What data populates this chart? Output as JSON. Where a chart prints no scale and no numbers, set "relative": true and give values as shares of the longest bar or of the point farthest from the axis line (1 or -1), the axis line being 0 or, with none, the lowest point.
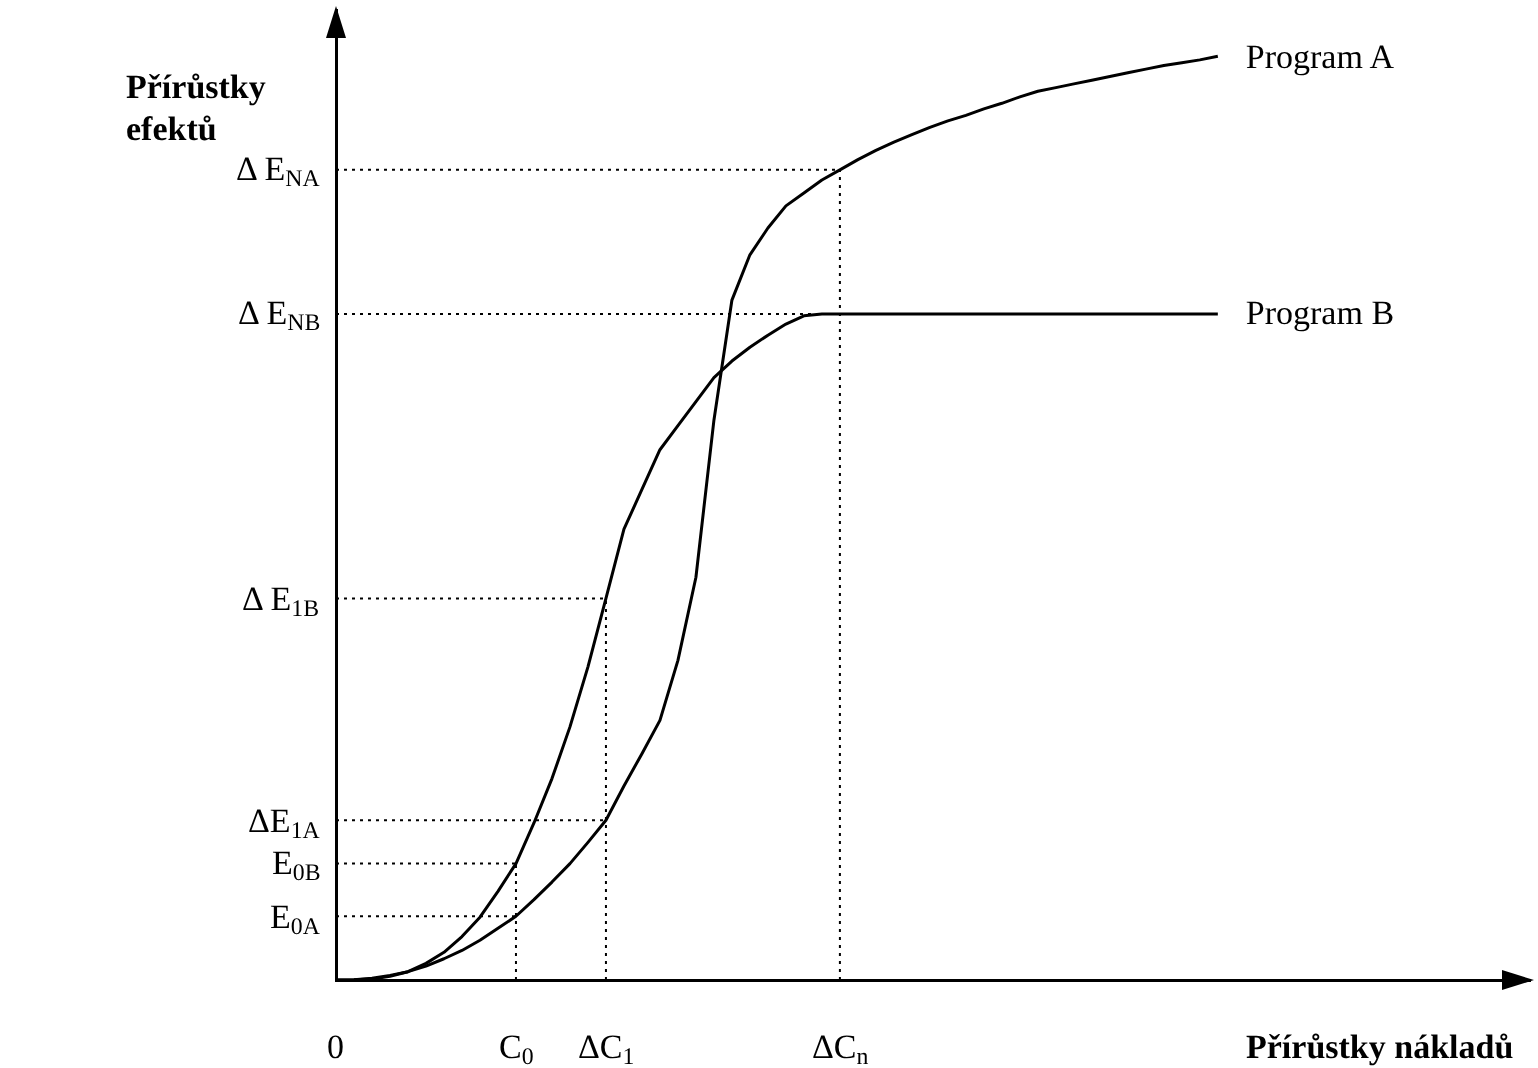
{
  "chart_data": {
    "type": "line",
    "relative": true,
    "xlabel": "Přírůstky nákladů",
    "ylabel": "Přírůstky efektů",
    "categories": [
      "0",
      null,
      null,
      null,
      null,
      null,
      null,
      null,
      null,
      null,
      "C$_{0}$",
      null,
      null,
      null,
      null,
      "ΔC$_{1}$",
      null,
      null,
      null,
      null,
      null,
      null,
      null,
      null,
      null,
      null,
      null,
      null,
      "ΔC$_{n}$",
      null,
      null,
      null,
      null,
      null,
      null,
      null,
      null,
      null,
      null,
      null,
      null,
      null,
      null,
      null,
      null,
      null,
      null,
      null,
      null,
      null
    ],
    "ref_lines": [
      {
        "axis": "x",
        "value": "C$_{0}$",
        "line_style": "dotted"
      },
      {
        "axis": "x",
        "value": "ΔC$_{1}$",
        "line_style": "dotted"
      },
      {
        "axis": "x",
        "value": "ΔC$_{n}$",
        "line_style": "dotted"
      },
      {
        "axis": "y",
        "value": 0.069,
        "label": "E$_{0A}$",
        "line_style": "dotted"
      },
      {
        "axis": "y",
        "value": 0.126,
        "label": "E$_{0B}$",
        "line_style": "dotted"
      },
      {
        "axis": "y",
        "value": 0.173,
        "label": "ΔE$_{1A}$",
        "line_style": "dotted"
      },
      {
        "axis": "y",
        "value": 0.413,
        "label": "Δ E$_{1B}$",
        "line_style": "dotted"
      },
      {
        "axis": "y",
        "value": 0.721,
        "label": "Δ E$_{NB}$",
        "line_style": "dotted"
      },
      {
        "axis": "y",
        "value": 0.877,
        "label": "Δ E$_{NA}$",
        "line_style": "dotted"
      }
    ],
    "series": [
      {
        "name": "Program A",
        "color": "#000000",
        "values": [
          0,
          0.0004,
          0.002,
          0.005,
          0.009,
          0.015,
          0.023,
          0.032,
          0.043,
          0.056,
          0.069,
          0.087,
          0.106,
          0.126,
          0.149,
          0.173,
          0.21,
          0.245,
          0.281,
          0.346,
          0.436,
          0.606,
          0.736,
          0.785,
          0.814,
          0.838,
          0.852,
          0.866,
          0.877,
          0.888,
          0.898,
          0.907,
          0.915,
          0.923,
          0.93,
          0.936,
          0.943,
          0.949,
          0.956,
          0.962,
          0.966,
          0.97,
          0.974,
          0.978,
          0.982,
          0.986,
          0.99,
          0.993,
          0.996,
          1.0
        ]
      },
      {
        "name": "Program B",
        "color": "#000000",
        "values": [
          0,
          0.0002,
          0.001,
          0.004,
          0.009,
          0.018,
          0.03,
          0.047,
          0.068,
          0.096,
          0.126,
          0.17,
          0.218,
          0.274,
          0.339,
          0.413,
          0.488,
          0.531,
          0.574,
          0.6,
          0.626,
          0.652,
          0.67,
          0.685,
          0.698,
          0.71,
          0.719,
          0.721,
          0.721,
          0.721,
          0.721,
          0.721,
          0.721,
          0.721,
          0.721,
          0.721,
          0.721,
          0.721,
          0.721,
          0.721,
          0.721,
          0.721,
          0.721,
          0.721,
          0.721,
          0.721,
          0.721,
          0.721,
          0.721,
          0.721
        ]
      }
    ],
    "marker": "none",
    "line_style": "solid"
  }
}
